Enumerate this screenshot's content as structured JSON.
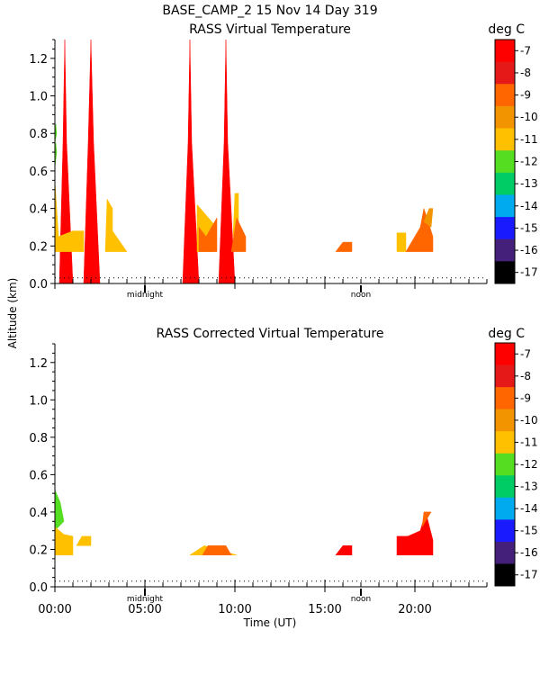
{
  "header": {
    "title": "BASE_CAMP_2  15 Nov 14 Day 319"
  },
  "shared_axes": {
    "ylabel": "Altitude (km)",
    "xlabel": "Time (UT)",
    "x_tick_labels": [
      "00:00",
      "05:00",
      "10:00",
      "15:00",
      "20:00"
    ],
    "x_markers": {
      "midnight": "midnight",
      "noon": "noon"
    }
  },
  "chart_data": [
    {
      "type": "heatmap",
      "title": "RASS Virtual Temperature",
      "units": "deg C",
      "xlim": [
        0,
        24
      ],
      "ylim": [
        0,
        1.3
      ],
      "y_ticks": [
        "0.0",
        "0.2",
        "0.4",
        "0.6",
        "0.8",
        "1.0",
        "1.2"
      ],
      "x_ticks": [
        0,
        5,
        10,
        15,
        20
      ],
      "marker_positions": {
        "midnight": 5,
        "noon": 17
      },
      "min_range_line_km": 0.03,
      "colorbar": {
        "labels": [
          "-7",
          "-8",
          "-9",
          "-10",
          "-11",
          "-12",
          "-13",
          "-14",
          "-15",
          "-16",
          "-17"
        ],
        "colors": [
          "#ff0000",
          "#e61919",
          "#ff6600",
          "#f29400",
          "#ffc000",
          "#55dd22",
          "#00cc66",
          "#00aaee",
          "#1a1aff",
          "#44207a",
          "#000000"
        ]
      },
      "regions": [
        {
          "color": "#ff0000",
          "points": [
            [
              0.25,
              0
            ],
            [
              0.45,
              0.75
            ],
            [
              0.55,
              1.3
            ],
            [
              0.65,
              0.75
            ],
            [
              1.0,
              0
            ]
          ]
        },
        {
          "color": "#ff0000",
          "points": [
            [
              1.6,
              0
            ],
            [
              1.85,
              0.75
            ],
            [
              2.0,
              1.3
            ],
            [
              2.15,
              0.75
            ],
            [
              2.5,
              0
            ]
          ]
        },
        {
          "color": "#ff0000",
          "points": [
            [
              7.1,
              0
            ],
            [
              7.4,
              0.75
            ],
            [
              7.5,
              1.3
            ],
            [
              7.6,
              0.75
            ],
            [
              8.0,
              0
            ]
          ]
        },
        {
          "color": "#ff0000",
          "points": [
            [
              9.1,
              0
            ],
            [
              9.4,
              0.75
            ],
            [
              9.5,
              1.3
            ],
            [
              9.6,
              0.75
            ],
            [
              10.0,
              0
            ]
          ]
        },
        {
          "color": "#ffc000",
          "points": [
            [
              0.0,
              0.55
            ],
            [
              0.2,
              0.25
            ],
            [
              1.0,
              0.28
            ],
            [
              1.6,
              0.28
            ],
            [
              1.6,
              0.17
            ],
            [
              0.0,
              0.17
            ]
          ]
        },
        {
          "color": "#ffc000",
          "points": [
            [
              2.8,
              0.17
            ],
            [
              2.9,
              0.45
            ],
            [
              3.2,
              0.4
            ],
            [
              3.2,
              0.28
            ],
            [
              4.0,
              0.17
            ]
          ]
        },
        {
          "color": "#ffc000",
          "points": [
            [
              7.9,
              0.17
            ],
            [
              7.9,
              0.42
            ],
            [
              8.8,
              0.32
            ],
            [
              8.8,
              0.17
            ]
          ]
        },
        {
          "color": "#ffc000",
          "points": [
            [
              9.9,
              0.25
            ],
            [
              10.0,
              0.48
            ],
            [
              10.2,
              0.48
            ],
            [
              10.2,
              0.28
            ]
          ]
        },
        {
          "color": "#ff6600",
          "points": [
            [
              8.0,
              0.17
            ],
            [
              8.0,
              0.3
            ],
            [
              8.4,
              0.25
            ],
            [
              9.0,
              0.35
            ],
            [
              9.0,
              0.17
            ]
          ]
        },
        {
          "color": "#ff6600",
          "points": [
            [
              9.8,
              0.17
            ],
            [
              10.1,
              0.35
            ],
            [
              10.6,
              0.25
            ],
            [
              10.6,
              0.17
            ]
          ]
        },
        {
          "color": "#ff6600",
          "points": [
            [
              15.6,
              0.17
            ],
            [
              16.0,
              0.22
            ],
            [
              16.5,
              0.22
            ],
            [
              16.5,
              0.17
            ]
          ]
        },
        {
          "color": "#ffc000",
          "points": [
            [
              19.0,
              0.17
            ],
            [
              19.0,
              0.27
            ],
            [
              19.5,
              0.27
            ],
            [
              19.5,
              0.17
            ]
          ]
        },
        {
          "color": "#ff6600",
          "points": [
            [
              19.5,
              0.17
            ],
            [
              20.3,
              0.3
            ],
            [
              20.5,
              0.4
            ],
            [
              21.0,
              0.25
            ],
            [
              21.0,
              0.17
            ]
          ]
        },
        {
          "color": "#f29400",
          "points": [
            [
              20.5,
              0.33
            ],
            [
              20.8,
              0.4
            ],
            [
              21.0,
              0.4
            ],
            [
              20.9,
              0.3
            ]
          ]
        },
        {
          "color": "#55dd22",
          "points": [
            [
              0.0,
              0.62
            ],
            [
              0.1,
              0.7
            ],
            [
              0.05,
              0.75
            ],
            [
              0.0,
              0.7
            ]
          ]
        },
        {
          "color": "#55dd22",
          "points": [
            [
              0.0,
              0.75
            ],
            [
              0.1,
              0.8
            ],
            [
              0.05,
              0.85
            ],
            [
              0.0,
              0.8
            ]
          ]
        }
      ]
    },
    {
      "type": "heatmap",
      "title": "RASS Corrected Virtual Temperature",
      "units": "deg C",
      "xlim": [
        0,
        24
      ],
      "ylim": [
        0,
        1.3
      ],
      "y_ticks": [
        "0.0",
        "0.2",
        "0.4",
        "0.6",
        "0.8",
        "1.0",
        "1.2"
      ],
      "x_ticks": [
        0,
        5,
        10,
        15,
        20
      ],
      "marker_positions": {
        "midnight": 5,
        "noon": 17
      },
      "min_range_line_km": 0.03,
      "colorbar": {
        "labels": [
          "-7",
          "-8",
          "-9",
          "-10",
          "-11",
          "-12",
          "-13",
          "-14",
          "-15",
          "-16",
          "-17"
        ],
        "colors": [
          "#ff0000",
          "#e61919",
          "#ff6600",
          "#f29400",
          "#ffc000",
          "#55dd22",
          "#00cc66",
          "#00aaee",
          "#1a1aff",
          "#44207a",
          "#000000"
        ]
      },
      "regions": [
        {
          "color": "#55dd22",
          "points": [
            [
              0.0,
              0.52
            ],
            [
              0.3,
              0.45
            ],
            [
              0.5,
              0.35
            ],
            [
              0.0,
              0.3
            ]
          ]
        },
        {
          "color": "#ffc000",
          "points": [
            [
              0.0,
              0.17
            ],
            [
              0.0,
              0.32
            ],
            [
              0.5,
              0.28
            ],
            [
              1.0,
              0.27
            ],
            [
              1.0,
              0.17
            ]
          ]
        },
        {
          "color": "#ffc000",
          "points": [
            [
              1.2,
              0.22
            ],
            [
              1.5,
              0.27
            ],
            [
              2.0,
              0.27
            ],
            [
              2.0,
              0.22
            ]
          ]
        },
        {
          "color": "#ffc000",
          "points": [
            [
              7.5,
              0.17
            ],
            [
              8.3,
              0.22
            ],
            [
              10.1,
              0.17
            ]
          ]
        },
        {
          "color": "#ff6600",
          "points": [
            [
              8.2,
              0.17
            ],
            [
              8.5,
              0.22
            ],
            [
              9.5,
              0.22
            ],
            [
              9.8,
              0.17
            ]
          ]
        },
        {
          "color": "#ff0000",
          "points": [
            [
              15.6,
              0.17
            ],
            [
              16.0,
              0.22
            ],
            [
              16.5,
              0.22
            ],
            [
              16.5,
              0.17
            ]
          ]
        },
        {
          "color": "#ff0000",
          "points": [
            [
              19.0,
              0.17
            ],
            [
              19.0,
              0.27
            ],
            [
              19.6,
              0.27
            ],
            [
              20.3,
              0.3
            ],
            [
              20.6,
              0.4
            ],
            [
              21.0,
              0.25
            ],
            [
              21.0,
              0.17
            ]
          ]
        },
        {
          "color": "#ff6600",
          "points": [
            [
              20.4,
              0.32
            ],
            [
              20.5,
              0.4
            ],
            [
              20.9,
              0.4
            ]
          ]
        }
      ]
    }
  ]
}
